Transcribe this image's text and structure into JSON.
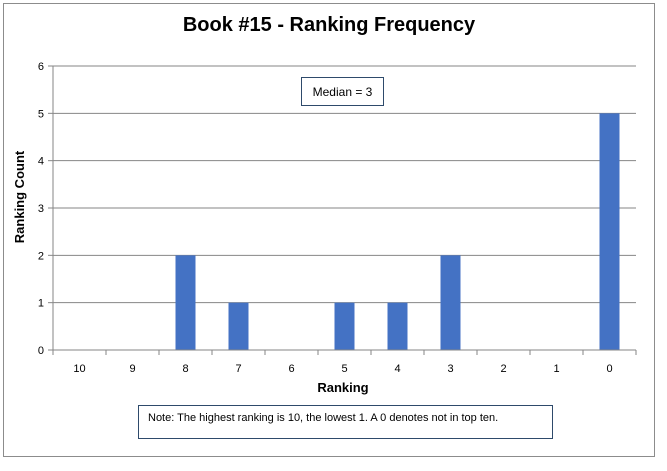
{
  "chart_data": {
    "type": "bar",
    "title": "Book #15 - Ranking Frequency",
    "xlabel": "Ranking",
    "ylabel": "Ranking Count",
    "categories": [
      "10",
      "9",
      "8",
      "7",
      "6",
      "5",
      "4",
      "3",
      "2",
      "1",
      "0"
    ],
    "values": [
      0,
      0,
      2,
      1,
      0,
      1,
      1,
      2,
      0,
      0,
      5
    ],
    "ylim": [
      0,
      6
    ],
    "yticks": [
      "0",
      "1",
      "2",
      "3",
      "4",
      "5",
      "6"
    ],
    "grid": true,
    "bar_color": "#4472c4",
    "annotations": {
      "median": "Median = 3",
      "note": "Note: The highest ranking is 10, the lowest 1. A 0 denotes not in top ten."
    }
  }
}
